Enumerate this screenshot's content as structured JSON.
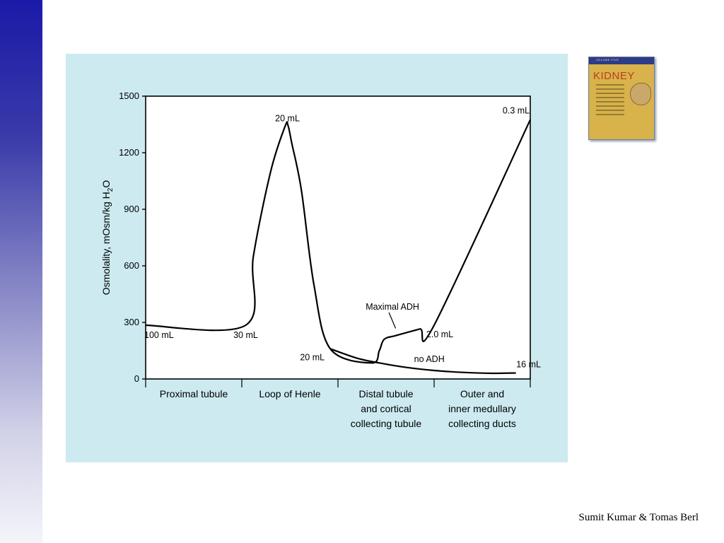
{
  "slide": {
    "credit": "Sumit Kumar & Tomas Berl"
  },
  "book": {
    "title": "KIDNEY",
    "band_text": "VOLUME FIVE",
    "icon": "book-cover-icon"
  },
  "colors": {
    "sidebar_top": "#1a1aa8",
    "panel_background": "#cdeaf1",
    "line": "#000000"
  },
  "chart_data": {
    "type": "line",
    "ylabel": "Osmolality, mOsm/kg H2O",
    "ylabel_main": "Osmolality, mOsm/kg H",
    "ylabel_sub": "2",
    "ylabel_tail": "O",
    "ylim": [
      0,
      1500
    ],
    "yticks": [
      0,
      300,
      600,
      900,
      1200,
      1500
    ],
    "xlim": [
      0,
      4
    ],
    "segments": [
      {
        "label_lines": [
          "Proximal tubule"
        ],
        "range": [
          0,
          1
        ]
      },
      {
        "label_lines": [
          "Loop of Henle"
        ],
        "range": [
          1,
          2
        ]
      },
      {
        "label_lines": [
          "Distal tubule",
          "and cortical",
          "collecting tubule"
        ],
        "range": [
          2,
          3
        ]
      },
      {
        "label_lines": [
          "Outer and",
          "inner medullary",
          "collecting ducts"
        ],
        "range": [
          3,
          4
        ]
      }
    ],
    "series": [
      {
        "name": "Maximal ADH",
        "x": [
          0,
          1.04,
          1.12,
          1.3,
          1.45,
          1.48,
          1.52,
          1.62,
          1.75,
          1.92,
          2.35,
          2.43,
          2.48,
          2.6,
          2.85,
          3.0,
          4.0
        ],
        "y": [
          285,
          285,
          650,
          1100,
          1340,
          1345,
          1250,
          1000,
          500,
          160,
          85,
          150,
          210,
          230,
          265,
          285,
          1375
        ]
      },
      {
        "name": "no ADH",
        "x": [
          1.92,
          2.2,
          2.43,
          2.7,
          3.0,
          3.3,
          3.6,
          3.85
        ],
        "y": [
          160,
          110,
          85,
          62,
          45,
          35,
          30,
          32
        ]
      }
    ],
    "annotations": [
      {
        "text": "100 mL",
        "x": 0.0,
        "y": 285
      },
      {
        "text": "30 mL",
        "x": 1.04,
        "y": 285
      },
      {
        "text": "20 mL",
        "x": 1.46,
        "y": 1345
      },
      {
        "text": "20 mL",
        "x": 1.92,
        "y": 160
      },
      {
        "text": "Maximal ADH",
        "x": 2.45,
        "y": 330
      },
      {
        "text": "2.0 mL",
        "x": 3.0,
        "y": 285
      },
      {
        "text": "no ADH",
        "x": 2.95,
        "y": 90
      },
      {
        "text": "16 mL",
        "x": 3.85,
        "y": 32
      },
      {
        "text": "0.3 mL",
        "x": 4.0,
        "y": 1375
      }
    ]
  }
}
